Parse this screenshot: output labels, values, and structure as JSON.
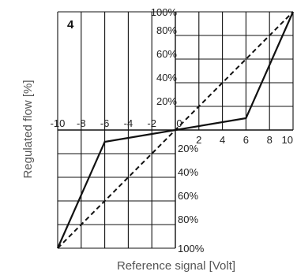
{
  "chart_data": {
    "type": "line",
    "panel_label": "4",
    "xlabel": "Reference signal [Volt]",
    "ylabel": "Regulated flow [%]",
    "xlim": [
      -10,
      10
    ],
    "ylim": [
      -100,
      100
    ],
    "grid": true,
    "x_ticks": [
      "-10",
      "-8",
      "-6",
      "-4",
      "-2",
      "0",
      "2",
      "4",
      "6",
      "8",
      "10"
    ],
    "x_tick_values": [
      -10,
      -8,
      -6,
      -4,
      -2,
      0,
      2,
      4,
      6,
      8,
      10
    ],
    "y_ticks_positive": [
      "100%",
      "80%",
      "60%",
      "40%",
      "20%"
    ],
    "y_ticks_positive_values": [
      100,
      80,
      60,
      40,
      20
    ],
    "y_ticks_negative": [
      "20%",
      "40%",
      "60%",
      "80%",
      "100%"
    ],
    "y_ticks_negative_values": [
      -20,
      -40,
      -60,
      -80,
      -100
    ],
    "series": [
      {
        "style": "solid",
        "x": [
          -10,
          -6,
          6,
          10
        ],
        "y": [
          -100,
          -10,
          10,
          100
        ]
      },
      {
        "style": "dashed",
        "x": [
          -10,
          10
        ],
        "y": [
          -100,
          100
        ]
      }
    ]
  }
}
